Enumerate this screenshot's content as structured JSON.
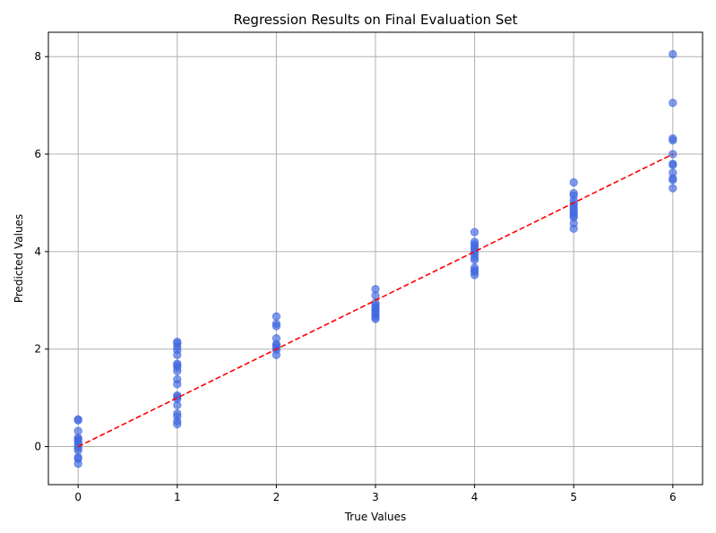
{
  "chart_data": {
    "type": "scatter",
    "title": "Regression Results on Final Evaluation Set",
    "xlabel": "True Values",
    "ylabel": "Predicted Values",
    "xlim": [
      -0.3,
      6.3
    ],
    "ylim": [
      -0.78,
      8.5
    ],
    "xticks": [
      0,
      1,
      2,
      3,
      4,
      5,
      6
    ],
    "yticks": [
      0,
      2,
      4,
      6,
      8
    ],
    "grid": true,
    "point_color": "#4169e1",
    "reference_line": {
      "style": "dashed",
      "color": "#ff0000",
      "from": [
        0,
        0
      ],
      "to": [
        6,
        6
      ]
    },
    "points": [
      [
        0,
        0.56
      ],
      [
        0,
        0.54
      ],
      [
        0,
        0.32
      ],
      [
        0,
        0.18
      ],
      [
        0,
        0.15
      ],
      [
        0,
        0.12
      ],
      [
        0,
        0.08
      ],
      [
        0,
        0.02
      ],
      [
        0,
        -0.03
      ],
      [
        0,
        -0.08
      ],
      [
        0,
        -0.22
      ],
      [
        0,
        -0.25
      ],
      [
        0,
        -0.35
      ],
      [
        1,
        2.15
      ],
      [
        1,
        2.12
      ],
      [
        1,
        2.05
      ],
      [
        1,
        1.98
      ],
      [
        1,
        1.88
      ],
      [
        1,
        1.7
      ],
      [
        1,
        1.67
      ],
      [
        1,
        1.62
      ],
      [
        1,
        1.55
      ],
      [
        1,
        1.38
      ],
      [
        1,
        1.28
      ],
      [
        1,
        1.05
      ],
      [
        1,
        1.02
      ],
      [
        1,
        0.98
      ],
      [
        1,
        0.85
      ],
      [
        1,
        0.68
      ],
      [
        1,
        0.62
      ],
      [
        1,
        0.52
      ],
      [
        1,
        0.46
      ],
      [
        2,
        2.67
      ],
      [
        2,
        2.52
      ],
      [
        2,
        2.47
      ],
      [
        2,
        2.22
      ],
      [
        2,
        2.1
      ],
      [
        2,
        2.07
      ],
      [
        2,
        2.03
      ],
      [
        2,
        1.98
      ],
      [
        2,
        1.88
      ],
      [
        3,
        3.23
      ],
      [
        3,
        3.1
      ],
      [
        3,
        2.95
      ],
      [
        3,
        2.9
      ],
      [
        3,
        2.86
      ],
      [
        3,
        2.82
      ],
      [
        3,
        2.78
      ],
      [
        3,
        2.74
      ],
      [
        3,
        2.7
      ],
      [
        3,
        2.66
      ],
      [
        3,
        2.62
      ],
      [
        4,
        4.4
      ],
      [
        4,
        4.2
      ],
      [
        4,
        4.15
      ],
      [
        4,
        4.1
      ],
      [
        4,
        4.05
      ],
      [
        4,
        4.0
      ],
      [
        4,
        3.95
      ],
      [
        4,
        3.88
      ],
      [
        4,
        3.83
      ],
      [
        4,
        3.67
      ],
      [
        4,
        3.62
      ],
      [
        4,
        3.58
      ],
      [
        4,
        3.52
      ],
      [
        5,
        5.42
      ],
      [
        5,
        5.2
      ],
      [
        5,
        5.15
      ],
      [
        5,
        5.05
      ],
      [
        5,
        4.98
      ],
      [
        5,
        4.93
      ],
      [
        5,
        4.88
      ],
      [
        5,
        4.83
      ],
      [
        5,
        4.78
      ],
      [
        5,
        4.74
      ],
      [
        5,
        4.7
      ],
      [
        5,
        4.58
      ],
      [
        5,
        4.47
      ],
      [
        6,
        8.05
      ],
      [
        6,
        7.05
      ],
      [
        6,
        6.32
      ],
      [
        6,
        6.28
      ],
      [
        6,
        6.0
      ],
      [
        6,
        5.8
      ],
      [
        6,
        5.78
      ],
      [
        6,
        5.62
      ],
      [
        6,
        5.5
      ],
      [
        6,
        5.47
      ],
      [
        6,
        5.3
      ]
    ]
  }
}
